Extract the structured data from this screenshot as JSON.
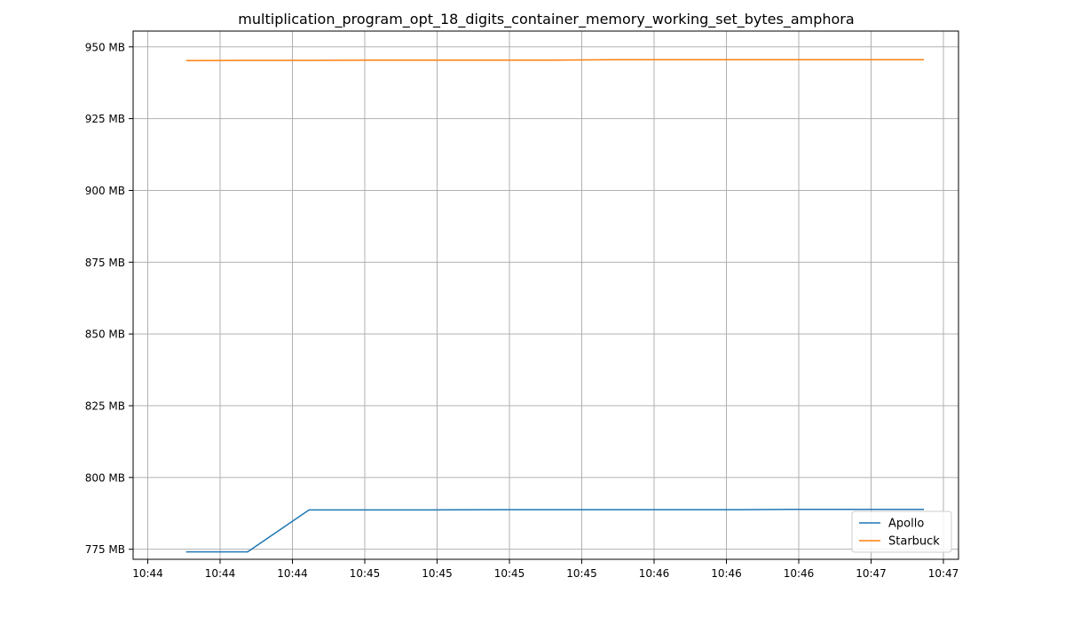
{
  "chart_data": {
    "type": "line",
    "title": "multiplication_program_opt_18_digits_container_memory_working_set_bytes_amphora",
    "xlabel": "",
    "ylabel": "",
    "x_tick_labels": [
      "10:44",
      "10:44",
      "10:44",
      "10:45",
      "10:45",
      "10:45",
      "10:45",
      "10:46",
      "10:46",
      "10:46",
      "10:47",
      "10:47"
    ],
    "y_ticks": [
      775,
      800,
      825,
      850,
      875,
      900,
      925,
      950
    ],
    "y_tick_suffix": " MB",
    "ylim": [
      771.5,
      955.5
    ],
    "x_index_range": [
      0,
      11
    ],
    "grid": true,
    "legend_position": "lower-right",
    "series": [
      {
        "name": "Apollo",
        "color": "#1f77b4",
        "x": [
          0.53,
          1.38,
          2.23,
          3.08,
          3.93,
          4.78,
          5.63,
          6.48,
          7.33,
          8.18,
          9.03,
          9.88,
          10.73
        ],
        "y": [
          774.1,
          774.1,
          788.7,
          788.7,
          788.7,
          788.8,
          788.8,
          788.8,
          788.8,
          788.8,
          788.9,
          788.9,
          788.9
        ]
      },
      {
        "name": "Starbuck",
        "color": "#ff7f0e",
        "x": [
          0.53,
          1.38,
          2.23,
          3.08,
          3.93,
          4.78,
          5.63,
          6.48,
          7.33,
          8.18,
          9.03,
          9.88,
          10.73
        ],
        "y": [
          945.2,
          945.3,
          945.3,
          945.4,
          945.4,
          945.4,
          945.4,
          945.5,
          945.5,
          945.5,
          945.5,
          945.5,
          945.5
        ]
      }
    ]
  }
}
